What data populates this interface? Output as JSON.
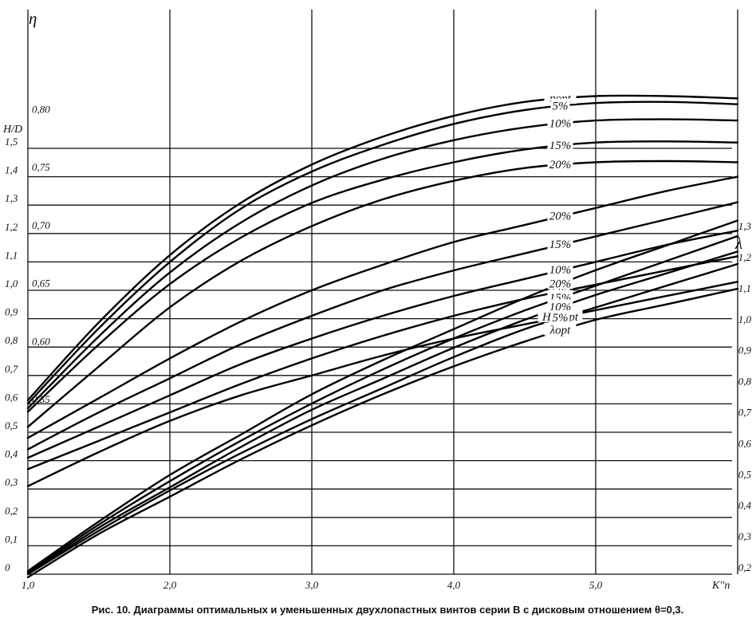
{
  "caption": "Рис. 10. Диаграммы оптимальных и уменьшенных двухлопастных винтов серии В с дисковым отношением θ=0,3.",
  "chart_data": {
    "type": "line",
    "title": "",
    "x": {
      "label": "K''n",
      "ticks": [
        1.0,
        2.0,
        3.0,
        4.0,
        5.0
      ],
      "tick_labels": [
        "1,0",
        "2,0",
        "3,0",
        "4,0",
        "5,0"
      ],
      "range": [
        1.0,
        6.0
      ]
    },
    "axes": {
      "eta": {
        "label": "η",
        "ticks": [
          0.55,
          0.6,
          0.65,
          0.7,
          0.75,
          0.8
        ],
        "tick_labels": [
          "0,55",
          "0,60",
          "0,65",
          "0,70",
          "0,75",
          "0,80"
        ]
      },
      "hd": {
        "label": "H/D",
        "ticks": [
          0,
          0.1,
          0.2,
          0.3,
          0.4,
          0.5,
          0.6,
          0.7,
          0.8,
          0.9,
          1.0,
          1.1,
          1.2,
          1.3,
          1.4,
          1.5
        ],
        "tick_labels": [
          "0",
          "0,1",
          "0,2",
          "0,3",
          "0,4",
          "0,5",
          "0,6",
          "0,7",
          "0,8",
          "0,9",
          "1,0",
          "1,1",
          "1,2",
          "1,3",
          "1,4",
          "1,5"
        ]
      },
      "lambda": {
        "label": "λ",
        "ticks": [
          0.2,
          0.3,
          0.4,
          0.5,
          0.6,
          0.7,
          0.8,
          0.9,
          1.0,
          1.1,
          1.2,
          1.3
        ],
        "tick_labels": [
          "0,2",
          "0,3",
          "0,4",
          "0,5",
          "0,6",
          "0,7",
          "0,8",
          "0,9",
          "1,0",
          "1,1",
          "1,2",
          "1,3"
        ]
      }
    },
    "series": [
      {
        "name": "ηopt",
        "axis": "eta",
        "x": [
          1.0,
          1.5,
          2.0,
          2.5,
          3.0,
          3.5,
          4.0,
          4.5,
          5.0,
          5.5,
          6.0
        ],
        "values": [
          0.555,
          0.622,
          0.68,
          0.725,
          0.758,
          0.782,
          0.8,
          0.812,
          0.817,
          0.817,
          0.815
        ]
      },
      {
        "name": "5%",
        "axis": "eta",
        "x": [
          1.0,
          1.5,
          2.0,
          2.5,
          3.0,
          3.5,
          4.0,
          4.5,
          5.0,
          5.5,
          6.0
        ],
        "values": [
          0.552,
          0.617,
          0.674,
          0.72,
          0.752,
          0.775,
          0.793,
          0.805,
          0.811,
          0.812,
          0.81
        ]
      },
      {
        "name": "10%",
        "axis": "eta",
        "x": [
          1.0,
          1.5,
          2.0,
          2.5,
          3.0,
          3.5,
          4.0,
          4.5,
          5.0,
          5.5,
          6.0
        ],
        "values": [
          0.548,
          0.61,
          0.665,
          0.708,
          0.74,
          0.763,
          0.779,
          0.79,
          0.796,
          0.797,
          0.796
        ]
      },
      {
        "name": "15%",
        "axis": "eta",
        "x": [
          1.0,
          1.5,
          2.0,
          2.5,
          3.0,
          3.5,
          4.0,
          4.5,
          5.0,
          5.5,
          6.0
        ],
        "values": [
          0.545,
          0.603,
          0.655,
          0.695,
          0.725,
          0.745,
          0.76,
          0.771,
          0.777,
          0.778,
          0.777
        ]
      },
      {
        "name": "20%",
        "axis": "eta",
        "x": [
          1.0,
          1.5,
          2.0,
          2.5,
          3.0,
          3.5,
          4.0,
          4.5,
          5.0,
          5.5,
          6.0
        ],
        "values": [
          0.532,
          0.584,
          0.635,
          0.675,
          0.705,
          0.728,
          0.744,
          0.755,
          0.76,
          0.761,
          0.76
        ]
      },
      {
        "name": "20%",
        "axis": "hd",
        "x": [
          1.0,
          1.5,
          2.0,
          2.5,
          3.0,
          3.5,
          4.0,
          4.5,
          5.0,
          5.5,
          6.0
        ],
        "values": [
          0.48,
          0.62,
          0.76,
          0.89,
          1.0,
          1.09,
          1.17,
          1.23,
          1.29,
          1.35,
          1.4
        ]
      },
      {
        "name": "15%",
        "axis": "hd",
        "x": [
          1.0,
          1.5,
          2.0,
          2.5,
          3.0,
          3.5,
          4.0,
          4.5,
          5.0,
          5.5,
          6.0
        ],
        "values": [
          0.44,
          0.57,
          0.69,
          0.81,
          0.91,
          1.0,
          1.07,
          1.13,
          1.19,
          1.25,
          1.31
        ]
      },
      {
        "name": "10%",
        "axis": "hd",
        "x": [
          1.0,
          1.5,
          2.0,
          2.5,
          3.0,
          3.5,
          4.0,
          4.5,
          5.0,
          5.5,
          6.0
        ],
        "values": [
          0.41,
          0.52,
          0.63,
          0.74,
          0.83,
          0.91,
          0.98,
          1.04,
          1.1,
          1.16,
          1.21
        ]
      },
      {
        "name": "5%",
        "axis": "hd",
        "x": [
          1.0,
          1.5,
          2.0,
          2.5,
          3.0,
          3.5,
          4.0,
          4.5,
          5.0,
          5.5,
          6.0
        ],
        "values": [
          0.37,
          0.47,
          0.57,
          0.67,
          0.76,
          0.84,
          0.91,
          0.97,
          1.02,
          1.07,
          1.12
        ]
      },
      {
        "name": "H/Dopt",
        "axis": "hd",
        "x": [
          1.0,
          1.5,
          2.0,
          2.5,
          3.0,
          3.5,
          4.0,
          4.5,
          5.0,
          5.5,
          6.0
        ],
        "values": [
          0.31,
          0.43,
          0.54,
          0.63,
          0.7,
          0.77,
          0.83,
          0.88,
          0.93,
          0.98,
          1.03
        ]
      },
      {
        "name": "20%",
        "axis": "lambda",
        "x": [
          1.0,
          1.5,
          2.0,
          2.5,
          3.0,
          3.5,
          4.0,
          4.5,
          5.0,
          5.5,
          6.0
        ],
        "values": [
          0.21,
          0.37,
          0.52,
          0.65,
          0.78,
          0.89,
          0.99,
          1.09,
          1.18,
          1.26,
          1.34
        ]
      },
      {
        "name": "15%",
        "axis": "lambda",
        "x": [
          1.0,
          1.5,
          2.0,
          2.5,
          3.0,
          3.5,
          4.0,
          4.5,
          5.0,
          5.5,
          6.0
        ],
        "values": [
          0.205,
          0.36,
          0.5,
          0.63,
          0.75,
          0.86,
          0.96,
          1.05,
          1.13,
          1.21,
          1.29
        ]
      },
      {
        "name": "10%",
        "axis": "lambda",
        "x": [
          1.0,
          1.5,
          2.0,
          2.5,
          3.0,
          3.5,
          4.0,
          4.5,
          5.0,
          5.5,
          6.0
        ],
        "values": [
          0.2,
          0.35,
          0.48,
          0.61,
          0.73,
          0.83,
          0.93,
          1.02,
          1.1,
          1.17,
          1.24
        ]
      },
      {
        "name": "5%",
        "axis": "lambda",
        "x": [
          1.0,
          1.5,
          2.0,
          2.5,
          3.0,
          3.5,
          4.0,
          4.5,
          5.0,
          5.5,
          6.0
        ],
        "values": [
          0.2,
          0.34,
          0.47,
          0.59,
          0.7,
          0.8,
          0.9,
          0.99,
          1.06,
          1.13,
          1.2
        ]
      },
      {
        "name": "λopt",
        "axis": "lambda",
        "x": [
          1.0,
          1.5,
          2.0,
          2.5,
          3.0,
          3.5,
          4.0,
          4.5,
          5.0,
          5.5,
          6.0
        ],
        "values": [
          0.19,
          0.33,
          0.45,
          0.57,
          0.68,
          0.78,
          0.87,
          0.95,
          1.02,
          1.07,
          1.12
        ]
      }
    ],
    "curve_labels": [
      {
        "text": "ηopt",
        "series": 0
      },
      {
        "text": "5%",
        "series": 1
      },
      {
        "text": "10%",
        "series": 2
      },
      {
        "text": "15%",
        "series": 3
      },
      {
        "text": "20%",
        "series": 4
      },
      {
        "text": "20%",
        "series": 5
      },
      {
        "text": "15%",
        "series": 6
      },
      {
        "text": "10%",
        "series": 7
      },
      {
        "text": "5%",
        "series": 8
      },
      {
        "text": "H/Dopt",
        "series": 9
      },
      {
        "text": "20%",
        "series": 10
      },
      {
        "text": "15%",
        "series": 11
      },
      {
        "text": "10%",
        "series": 12
      },
      {
        "text": "5%",
        "series": 13
      },
      {
        "text": "λopt",
        "series": 14
      }
    ],
    "grid": true
  }
}
